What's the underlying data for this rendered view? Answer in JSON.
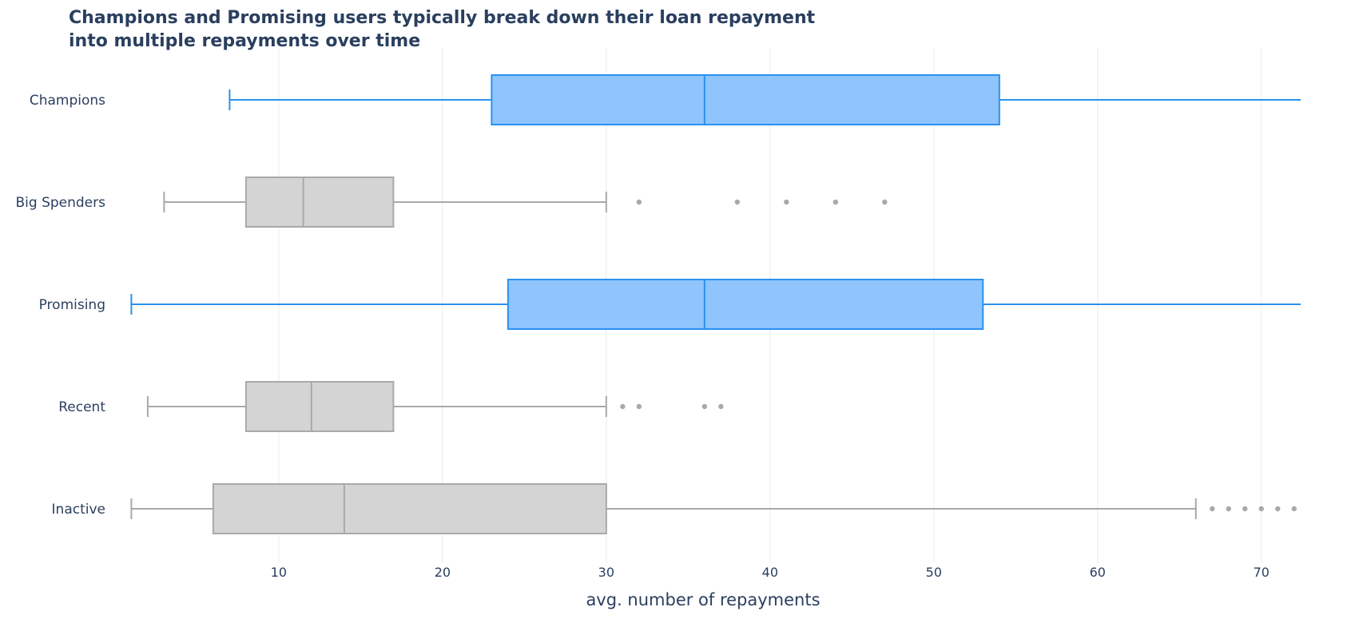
{
  "chart_data": {
    "type": "box",
    "orientation": "horizontal",
    "title_lines": [
      "Champions and Promising users typically break down their loan repayment",
      "into multiple repayments over time"
    ],
    "xlabel": "avg. number of repayments",
    "ylabel": "",
    "xlim": [
      0.2,
      72.4
    ],
    "xticks": [
      10,
      20,
      30,
      40,
      50,
      60,
      70
    ],
    "grid": "vertical",
    "legend": "none",
    "colors": {
      "highlight_fill": "#8fc5fc",
      "highlight_line": "#2a91f0",
      "muted_fill": "#d4d4d4",
      "muted_line": "#a9a9a9",
      "outlier": "#a9a9a9",
      "grid": "#ebebeb",
      "text": "#2a3f5f"
    },
    "series": [
      {
        "name": "Champions",
        "highlight": true,
        "lower_fence": 7,
        "q1": 23,
        "median": 36,
        "q3": 54,
        "upper_fence": 72.4,
        "outliers": []
      },
      {
        "name": "Big Spenders",
        "highlight": false,
        "lower_fence": 3,
        "q1": 8,
        "median": 11.5,
        "q3": 17,
        "upper_fence": 30,
        "outliers": [
          32,
          38,
          41,
          44,
          47
        ]
      },
      {
        "name": "Promising",
        "highlight": true,
        "lower_fence": 1,
        "q1": 24,
        "median": 36,
        "q3": 53,
        "upper_fence": 72.4,
        "outliers": []
      },
      {
        "name": "Recent",
        "highlight": false,
        "lower_fence": 2,
        "q1": 8,
        "median": 12,
        "q3": 17,
        "upper_fence": 30,
        "outliers": [
          31,
          32,
          36,
          37
        ]
      },
      {
        "name": "Inactive",
        "highlight": false,
        "lower_fence": 1,
        "q1": 6,
        "median": 14,
        "q3": 30,
        "upper_fence": 66,
        "outliers": [
          67,
          68,
          69,
          70,
          71,
          72
        ]
      }
    ]
  }
}
